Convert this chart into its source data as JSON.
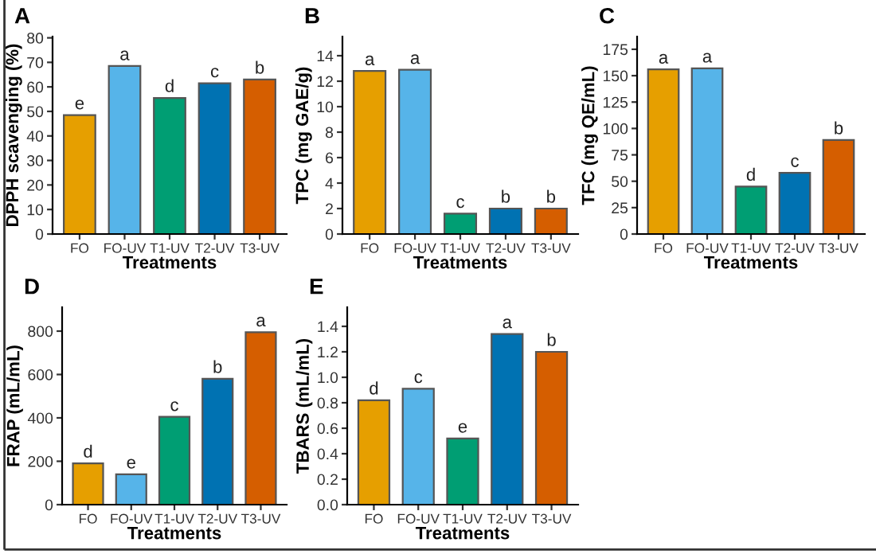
{
  "chart_data": [
    {
      "type": "bar",
      "title": "A",
      "xlabel": "Treatments",
      "ylabel": "DPPH scavenging (%)",
      "categories": [
        "FO",
        "FO-UV",
        "T1-UV",
        "T2-UV",
        "T3-UV"
      ],
      "values": [
        48.5,
        68.5,
        55.5,
        61.5,
        63
      ],
      "colors": [
        "#e69f00",
        "#56b4e9",
        "#009e73",
        "#0072b2",
        "#d55e00"
      ],
      "ylim": [
        0,
        80.5
      ],
      "yticks": [
        0,
        10,
        20,
        30,
        40,
        50,
        60,
        70,
        80
      ],
      "grid": false,
      "legend": false,
      "annotations": [
        {
          "text": "e",
          "x": "FO",
          "y": 48.5
        },
        {
          "text": "a",
          "x": "FO-UV",
          "y": 68.5
        },
        {
          "text": "d",
          "x": "T1-UV",
          "y": 55.5
        },
        {
          "text": "c",
          "x": "T2-UV",
          "y": 61.5
        },
        {
          "text": "b",
          "x": "T3-UV",
          "y": 63
        }
      ]
    },
    {
      "type": "bar",
      "title": "B",
      "xlabel": "Treatments",
      "ylabel": "TPC (mg GAE/g)",
      "categories": [
        "FO",
        "FO-UV",
        "T1-UV",
        "T2-UV",
        "T3-UV"
      ],
      "values": [
        12.8,
        12.9,
        1.6,
        2.0,
        2.0
      ],
      "colors": [
        "#e69f00",
        "#56b4e9",
        "#009e73",
        "#0072b2",
        "#d55e00"
      ],
      "ylim": [
        0,
        15.5
      ],
      "yticks": [
        0,
        2,
        4,
        6,
        8,
        10,
        12,
        14
      ],
      "grid": false,
      "legend": false,
      "annotations": [
        {
          "text": "a",
          "x": "FO",
          "y": 12.8
        },
        {
          "text": "a",
          "x": "FO-UV",
          "y": 12.9
        },
        {
          "text": "c",
          "x": "T1-UV",
          "y": 1.6
        },
        {
          "text": "b",
          "x": "T2-UV",
          "y": 2.0
        },
        {
          "text": "b",
          "x": "T3-UV",
          "y": 2.0
        }
      ]
    },
    {
      "type": "bar",
      "title": "C",
      "xlabel": "Treatments",
      "ylabel": "TFC (mg QE/mL)",
      "categories": [
        "FO",
        "FO-UV",
        "T1-UV",
        "T2-UV",
        "T3-UV"
      ],
      "values": [
        156,
        157,
        45,
        58,
        89
      ],
      "colors": [
        "#e69f00",
        "#56b4e9",
        "#009e73",
        "#0072b2",
        "#d55e00"
      ],
      "ylim": [
        0,
        187
      ],
      "yticks": [
        0,
        25,
        50,
        75,
        100,
        125,
        150,
        175
      ],
      "grid": false,
      "legend": false,
      "annotations": [
        {
          "text": "a",
          "x": "FO",
          "y": 156
        },
        {
          "text": "a",
          "x": "FO-UV",
          "y": 157
        },
        {
          "text": "d",
          "x": "T1-UV",
          "y": 45
        },
        {
          "text": "c",
          "x": "T2-UV",
          "y": 58
        },
        {
          "text": "b",
          "x": "T3-UV",
          "y": 89
        }
      ]
    },
    {
      "type": "bar",
      "title": "D",
      "xlabel": "Treatments",
      "ylabel": "FRAP (mL/mL)",
      "categories": [
        "FO",
        "FO-UV",
        "T1-UV",
        "T2-UV",
        "T3-UV"
      ],
      "values": [
        190,
        140,
        405,
        580,
        795
      ],
      "colors": [
        "#e69f00",
        "#56b4e9",
        "#009e73",
        "#0072b2",
        "#d55e00"
      ],
      "ylim": [
        0,
        910
      ],
      "yticks": [
        0,
        200,
        400,
        600,
        800
      ],
      "grid": false,
      "legend": false,
      "annotations": [
        {
          "text": "d",
          "x": "FO",
          "y": 190
        },
        {
          "text": "e",
          "x": "FO-UV",
          "y": 140
        },
        {
          "text": "c",
          "x": "T1-UV",
          "y": 405
        },
        {
          "text": "b",
          "x": "T2-UV",
          "y": 580
        },
        {
          "text": "a",
          "x": "T3-UV",
          "y": 795
        }
      ]
    },
    {
      "type": "bar",
      "title": "E",
      "xlabel": "Treatments",
      "ylabel": "TBARS (mL/mL)",
      "categories": [
        "FO",
        "FO-UV",
        "T1-UV",
        "T2-UV",
        "T3-UV"
      ],
      "values": [
        0.82,
        0.91,
        0.52,
        1.34,
        1.2
      ],
      "colors": [
        "#e69f00",
        "#56b4e9",
        "#009e73",
        "#0072b2",
        "#d55e00"
      ],
      "ylim": [
        0,
        1.55
      ],
      "yticks": [
        {
          "value": 0,
          "label": "0.0"
        },
        0.2,
        0.4,
        0.6,
        0.8,
        {
          "value": 1,
          "label": "1.0"
        },
        1.2,
        1.4
      ],
      "grid": false,
      "legend": false,
      "annotations": [
        {
          "text": "d",
          "x": "FO",
          "y": 0.82
        },
        {
          "text": "c",
          "x": "FO-UV",
          "y": 0.91
        },
        {
          "text": "e",
          "x": "T1-UV",
          "y": 0.52
        },
        {
          "text": "a",
          "x": "T2-UV",
          "y": 1.34
        },
        {
          "text": "b",
          "x": "T3-UV",
          "y": 1.2
        }
      ]
    }
  ]
}
